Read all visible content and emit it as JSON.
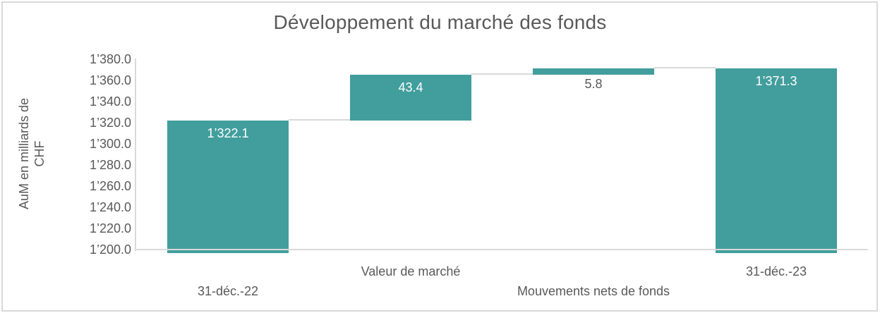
{
  "chart_data": {
    "type": "bar",
    "subtype": "waterfall",
    "title": "Développement du marché des fonds",
    "ylabel": "AuM en milliards de CHF",
    "ylabel_lines": [
      "AuM en milliards de",
      "CHF"
    ],
    "xlabel": "",
    "legend": "none",
    "grid": "off",
    "y_axis": {
      "min": 1200,
      "max": 1380,
      "step": 20,
      "tick_labels": [
        "1’380.0",
        "1’360.0",
        "1’340.0",
        "1’320.0",
        "1’300.0",
        "1’280.0",
        "1’260.0",
        "1’240.0",
        "1’220.0",
        "1’200.0"
      ],
      "tick_values": [
        1380,
        1360,
        1340,
        1320,
        1300,
        1280,
        1260,
        1240,
        1220,
        1200
      ]
    },
    "categories": [
      "31-déc.-22",
      "Valeur de marché",
      "Mouvements nets de fonds",
      "31-déc.-23"
    ],
    "bars": [
      {
        "category": "31-déc.-22",
        "role": "total",
        "start": 1200,
        "end": 1322.1,
        "value": 1322.1,
        "label": "1’322.1",
        "label_placement": "inside-top",
        "label_color": "#ffffff",
        "label_row": 2
      },
      {
        "category": "Valeur de marché",
        "role": "increase",
        "start": 1322.1,
        "end": 1365.5,
        "value": 43.4,
        "label": "43.4",
        "label_placement": "inside-top",
        "label_color": "#ffffff",
        "label_row": 1
      },
      {
        "category": "Mouvements nets de fonds",
        "role": "increase",
        "start": 1365.5,
        "end": 1371.3,
        "value": 5.8,
        "label": "5.8",
        "label_placement": "below",
        "label_color": "#595959",
        "label_row": 2
      },
      {
        "category": "31-déc.-23",
        "role": "total",
        "start": 1200,
        "end": 1371.3,
        "value": 1371.3,
        "label": "1’371.3",
        "label_placement": "inside-top",
        "label_color": "#ffffff",
        "label_row": 1
      }
    ],
    "colors": {
      "bar": "#429e9d",
      "axis_line": "#d9d9d9",
      "connector": "#d9d9d9",
      "text": "#595959",
      "label_on_bar": "#ffffff",
      "frame_border": "#d9d9d9",
      "background": "#ffffff"
    }
  }
}
